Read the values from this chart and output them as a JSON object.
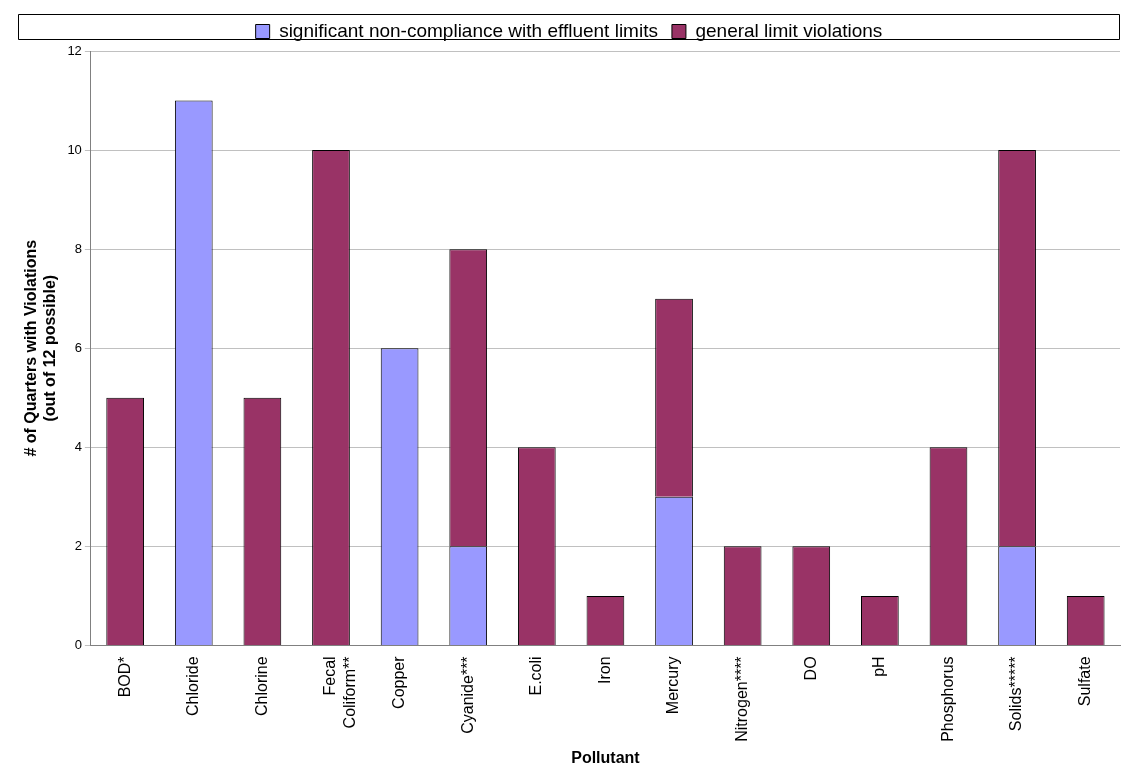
{
  "chart_data": {
    "type": "bar",
    "stacked": true,
    "xlabel": "Pollutant",
    "ylabel": "# of Quarters with Violations\n(out of 12 possible)",
    "categories": [
      "BOD*",
      "Chloride",
      "Chlorine",
      "Fecal Coliform**",
      "Copper",
      "Cyanide***",
      "E.coli",
      "Iron",
      "Mercury",
      "Nitrogen****",
      "DO",
      "pH",
      "Phosphorus",
      "Solids*****",
      "Sulfate"
    ],
    "series": [
      {
        "name": "significant non-compliance with effluent limits",
        "color": "#9999ff",
        "values": [
          null,
          11,
          null,
          null,
          6,
          2,
          null,
          null,
          3,
          null,
          null,
          null,
          null,
          2,
          null
        ]
      },
      {
        "name": "general limit violations",
        "color": "#993366",
        "values": [
          5,
          null,
          5,
          10,
          null,
          6,
          4,
          1,
          4,
          2,
          2,
          1,
          4,
          8,
          1
        ]
      }
    ],
    "ylim": [
      0,
      12
    ],
    "yticks": [
      0,
      2,
      4,
      6,
      8,
      10,
      12
    ],
    "grid": "y",
    "legend": "top"
  }
}
